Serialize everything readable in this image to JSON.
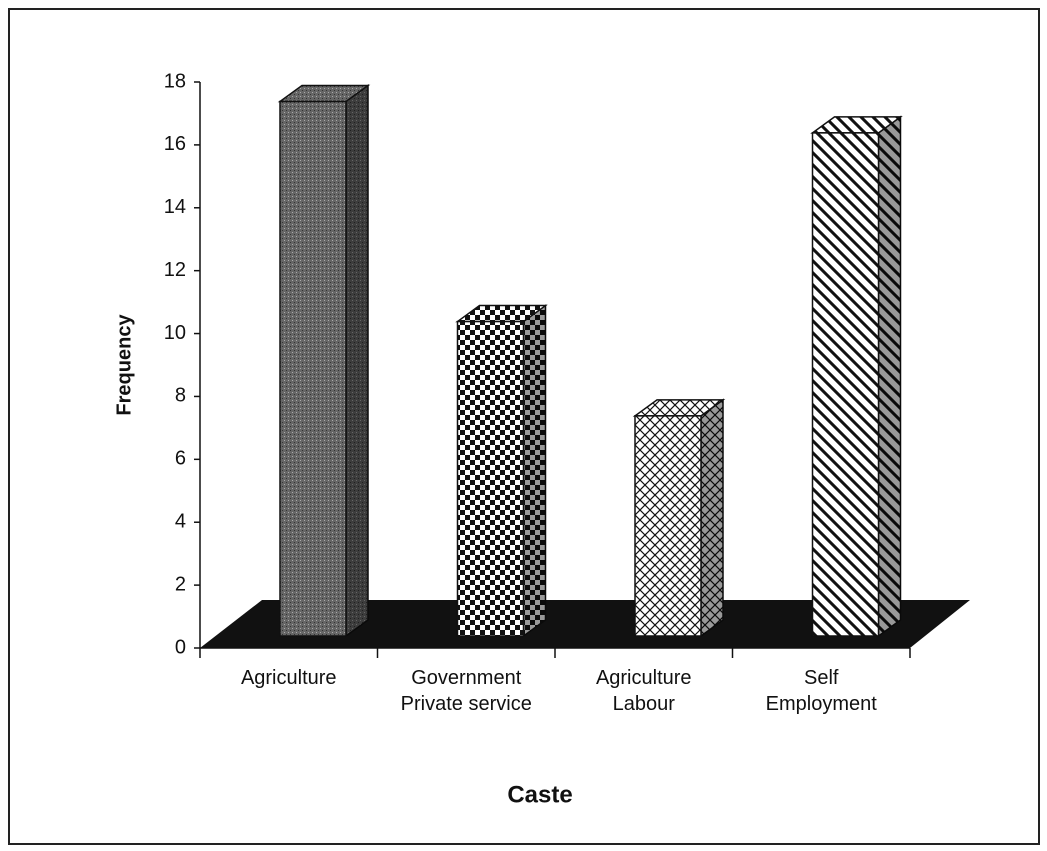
{
  "chart_data": {
    "type": "bar3d",
    "x_label": "Caste",
    "y_label": "Frequency",
    "categories": [
      "Agriculture",
      "Government Private service",
      "Agriculture Labour",
      "Self Employment"
    ],
    "values": [
      17,
      10,
      7,
      16
    ],
    "ylim": [
      0,
      18
    ],
    "yticks": [
      0,
      2,
      4,
      6,
      8,
      10,
      12,
      14,
      16,
      18
    ]
  }
}
